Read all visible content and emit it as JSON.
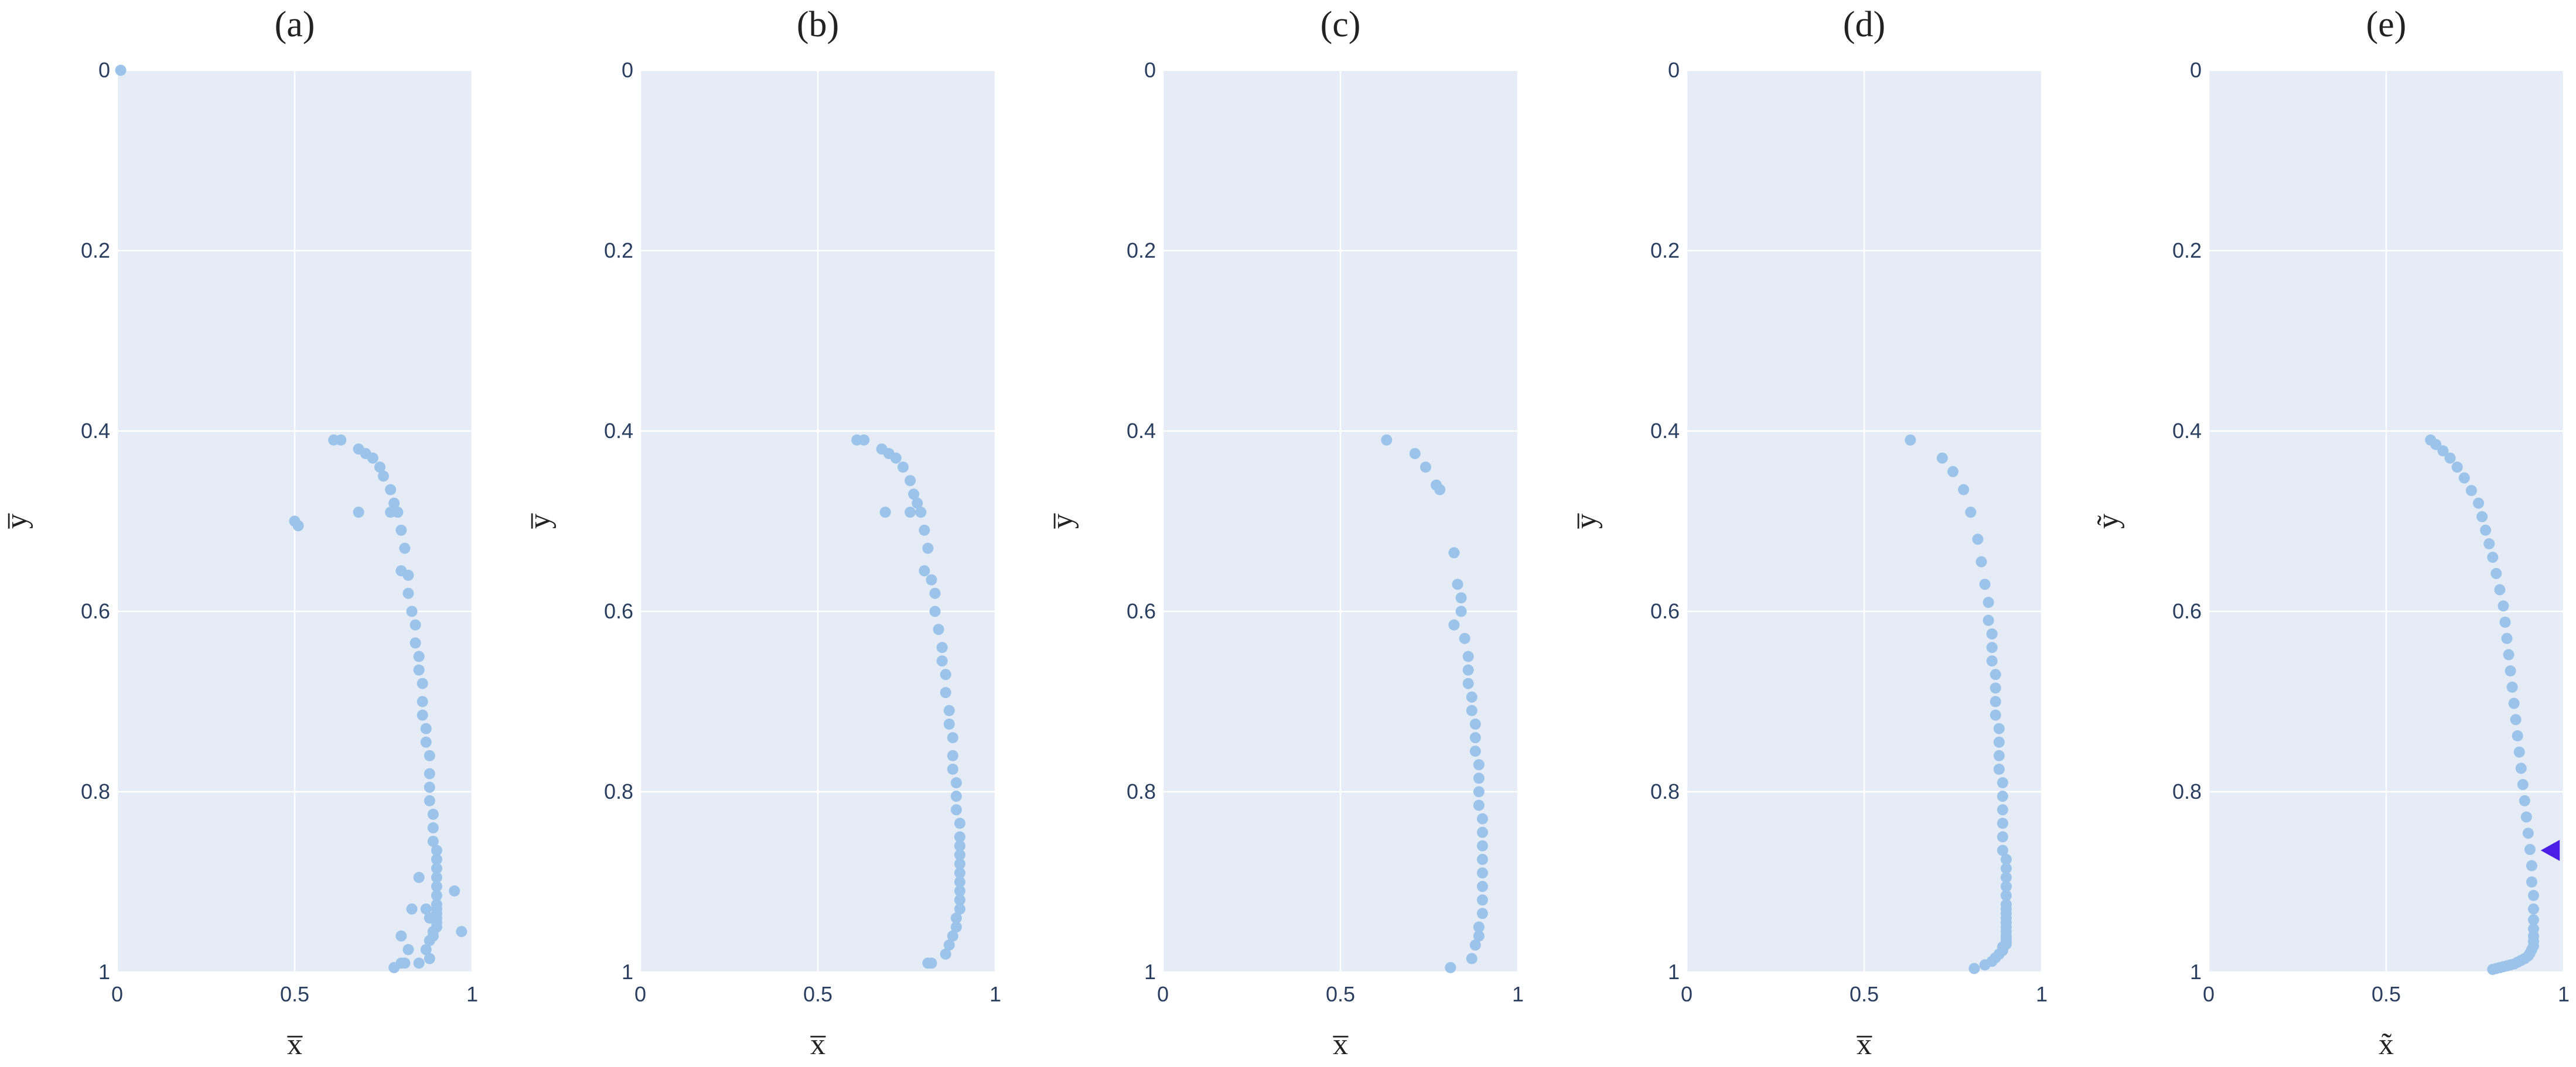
{
  "chart_data": [
    {
      "type": "scatter",
      "title": "(a)",
      "xlabel": "x̅",
      "ylabel": "y̅",
      "xlim": [
        0,
        1
      ],
      "ylim": [
        0,
        1
      ],
      "y_reversed": true,
      "x_ticks": [
        "0",
        "0.5",
        "1"
      ],
      "y_ticks": [
        "0",
        "0.2",
        "0.4",
        "0.6",
        "0.8",
        "1"
      ],
      "grid": true,
      "marker_color": "#9cc3ea",
      "plot_bg": "#e5ecf6",
      "series": [
        {
          "x": [
            0.01,
            0.61,
            0.63,
            0.68,
            0.7,
            0.72,
            0.74,
            0.75,
            0.77,
            0.78,
            0.79,
            0.79,
            0.68,
            0.77,
            0.5,
            0.51,
            0.8,
            0.81,
            0.8,
            0.82,
            0.82,
            0.83,
            0.84,
            0.84,
            0.85,
            0.85,
            0.86,
            0.86,
            0.86,
            0.87,
            0.87,
            0.88,
            0.88,
            0.88,
            0.88,
            0.89,
            0.89,
            0.89,
            0.9,
            0.9,
            0.9,
            0.9,
            0.9,
            0.9,
            0.9,
            0.9,
            0.9,
            0.9,
            0.9,
            0.9,
            0.89,
            0.89,
            0.88,
            0.87,
            0.85,
            0.83,
            0.88,
            0.95,
            0.97,
            0.8,
            0.82,
            0.87,
            0.88,
            0.85,
            0.8,
            0.78,
            0.81
          ],
          "y": [
            0.0,
            0.41,
            0.41,
            0.42,
            0.425,
            0.43,
            0.44,
            0.45,
            0.465,
            0.48,
            0.49,
            0.49,
            0.49,
            0.49,
            0.5,
            0.505,
            0.51,
            0.53,
            0.555,
            0.56,
            0.58,
            0.6,
            0.615,
            0.635,
            0.65,
            0.665,
            0.68,
            0.7,
            0.715,
            0.73,
            0.745,
            0.76,
            0.78,
            0.795,
            0.81,
            0.825,
            0.84,
            0.855,
            0.865,
            0.875,
            0.885,
            0.895,
            0.905,
            0.915,
            0.925,
            0.93,
            0.935,
            0.94,
            0.945,
            0.95,
            0.955,
            0.96,
            0.965,
            0.93,
            0.895,
            0.93,
            0.94,
            0.91,
            0.955,
            0.96,
            0.975,
            0.975,
            0.985,
            0.99,
            0.99,
            0.995,
            0.99
          ]
        }
      ]
    },
    {
      "type": "scatter",
      "title": "(b)",
      "xlabel": "x̅",
      "ylabel": "y̅",
      "xlim": [
        0,
        1
      ],
      "ylim": [
        0,
        1
      ],
      "y_reversed": true,
      "x_ticks": [
        "0",
        "0.5",
        "1"
      ],
      "y_ticks": [
        "0",
        "0.2",
        "0.4",
        "0.6",
        "0.8",
        "1"
      ],
      "grid": true,
      "marker_color": "#9cc3ea",
      "plot_bg": "#e5ecf6",
      "series": [
        {
          "x": [
            0.61,
            0.63,
            0.68,
            0.7,
            0.72,
            0.74,
            0.76,
            0.77,
            0.78,
            0.79,
            0.69,
            0.76,
            0.8,
            0.81,
            0.8,
            0.82,
            0.83,
            0.83,
            0.84,
            0.85,
            0.85,
            0.86,
            0.86,
            0.87,
            0.87,
            0.88,
            0.88,
            0.88,
            0.89,
            0.89,
            0.89,
            0.9,
            0.9,
            0.9,
            0.9,
            0.9,
            0.9,
            0.9,
            0.9,
            0.9,
            0.9,
            0.89,
            0.89,
            0.88,
            0.87,
            0.86,
            0.82,
            0.81
          ],
          "y": [
            0.41,
            0.41,
            0.42,
            0.425,
            0.43,
            0.44,
            0.455,
            0.47,
            0.48,
            0.49,
            0.49,
            0.49,
            0.51,
            0.53,
            0.555,
            0.565,
            0.58,
            0.6,
            0.62,
            0.64,
            0.655,
            0.67,
            0.69,
            0.71,
            0.725,
            0.74,
            0.76,
            0.775,
            0.79,
            0.805,
            0.82,
            0.835,
            0.85,
            0.86,
            0.87,
            0.88,
            0.89,
            0.9,
            0.91,
            0.92,
            0.93,
            0.94,
            0.95,
            0.96,
            0.97,
            0.98,
            0.99,
            0.99
          ]
        }
      ]
    },
    {
      "type": "scatter",
      "title": "(c)",
      "xlabel": "x̅",
      "ylabel": "y̅",
      "xlim": [
        0,
        1
      ],
      "ylim": [
        0,
        1
      ],
      "y_reversed": true,
      "x_ticks": [
        "0",
        "0.5",
        "1"
      ],
      "y_ticks": [
        "0",
        "0.2",
        "0.4",
        "0.6",
        "0.8",
        "1"
      ],
      "grid": true,
      "marker_color": "#9cc3ea",
      "plot_bg": "#e5ecf6",
      "series": [
        {
          "x": [
            0.63,
            0.71,
            0.74,
            0.77,
            0.78,
            0.82,
            0.83,
            0.84,
            0.84,
            0.82,
            0.85,
            0.86,
            0.86,
            0.86,
            0.87,
            0.87,
            0.88,
            0.88,
            0.88,
            0.89,
            0.89,
            0.89,
            0.89,
            0.9,
            0.9,
            0.9,
            0.9,
            0.9,
            0.9,
            0.9,
            0.9,
            0.89,
            0.89,
            0.88,
            0.87,
            0.81
          ],
          "y": [
            0.41,
            0.425,
            0.44,
            0.46,
            0.465,
            0.535,
            0.57,
            0.585,
            0.6,
            0.615,
            0.63,
            0.65,
            0.665,
            0.68,
            0.695,
            0.71,
            0.725,
            0.74,
            0.755,
            0.77,
            0.785,
            0.8,
            0.815,
            0.83,
            0.845,
            0.86,
            0.875,
            0.89,
            0.905,
            0.92,
            0.935,
            0.95,
            0.96,
            0.97,
            0.985,
            0.995
          ]
        }
      ]
    },
    {
      "type": "scatter",
      "title": "(d)",
      "xlabel": "x̅",
      "ylabel": "y̅",
      "xlim": [
        0,
        1
      ],
      "ylim": [
        0,
        1
      ],
      "y_reversed": true,
      "x_ticks": [
        "0",
        "0.5",
        "1"
      ],
      "y_ticks": [
        "0",
        "0.2",
        "0.4",
        "0.6",
        "0.8",
        "1"
      ],
      "grid": true,
      "marker_color": "#9cc3ea",
      "plot_bg": "#e5ecf6",
      "series": [
        {
          "x": [
            0.63,
            0.72,
            0.75,
            0.78,
            0.8,
            0.82,
            0.83,
            0.84,
            0.85,
            0.85,
            0.86,
            0.86,
            0.86,
            0.87,
            0.87,
            0.87,
            0.87,
            0.88,
            0.88,
            0.88,
            0.88,
            0.89,
            0.89,
            0.89,
            0.89,
            0.89,
            0.89,
            0.9,
            0.9,
            0.9,
            0.9,
            0.9,
            0.9,
            0.9,
            0.9,
            0.9,
            0.9,
            0.9,
            0.9,
            0.9,
            0.9,
            0.9,
            0.9,
            0.89,
            0.89,
            0.88,
            0.87,
            0.86,
            0.84,
            0.81
          ],
          "y": [
            0.41,
            0.43,
            0.445,
            0.465,
            0.49,
            0.52,
            0.545,
            0.57,
            0.59,
            0.61,
            0.625,
            0.64,
            0.655,
            0.67,
            0.685,
            0.7,
            0.715,
            0.73,
            0.745,
            0.76,
            0.775,
            0.79,
            0.805,
            0.82,
            0.835,
            0.85,
            0.865,
            0.875,
            0.885,
            0.895,
            0.905,
            0.915,
            0.925,
            0.93,
            0.935,
            0.94,
            0.945,
            0.95,
            0.955,
            0.96,
            0.963,
            0.966,
            0.969,
            0.972,
            0.976,
            0.98,
            0.984,
            0.988,
            0.992,
            0.996
          ]
        }
      ]
    },
    {
      "type": "scatter",
      "title": "(e)",
      "xlabel": "x̃",
      "ylabel": "ỹ",
      "xlim": [
        0,
        1
      ],
      "ylim": [
        0,
        1
      ],
      "y_reversed": true,
      "x_ticks": [
        "0",
        "0.5",
        "1"
      ],
      "y_ticks": [
        "0",
        "0.2",
        "0.4",
        "0.6",
        "0.8",
        "1"
      ],
      "grid": true,
      "marker_color": "#9cc3ea",
      "plot_bg": "#e5ecf6",
      "series": [
        {
          "x": [
            0.625,
            0.64,
            0.66,
            0.68,
            0.7,
            0.72,
            0.74,
            0.76,
            0.77,
            0.78,
            0.79,
            0.8,
            0.81,
            0.82,
            0.83,
            0.835,
            0.84,
            0.845,
            0.85,
            0.855,
            0.86,
            0.865,
            0.87,
            0.875,
            0.88,
            0.885,
            0.89,
            0.895,
            0.9,
            0.905,
            0.91,
            0.91,
            0.915,
            0.915,
            0.915,
            0.915,
            0.915,
            0.915,
            0.915,
            0.91,
            0.905,
            0.9,
            0.89,
            0.88,
            0.87,
            0.86,
            0.85,
            0.84,
            0.83,
            0.82,
            0.81,
            0.8
          ],
          "y": [
            0.41,
            0.415,
            0.422,
            0.43,
            0.44,
            0.452,
            0.466,
            0.48,
            0.495,
            0.51,
            0.525,
            0.54,
            0.558,
            0.576,
            0.594,
            0.612,
            0.63,
            0.648,
            0.666,
            0.684,
            0.702,
            0.72,
            0.738,
            0.756,
            0.774,
            0.792,
            0.81,
            0.828,
            0.846,
            0.864,
            0.882,
            0.9,
            0.915,
            0.93,
            0.942,
            0.952,
            0.96,
            0.966,
            0.971,
            0.975,
            0.979,
            0.982,
            0.985,
            0.987,
            0.989,
            0.991,
            0.992,
            0.993,
            0.994,
            0.995,
            0.996,
            0.997
          ]
        },
        {
          "marker": "triangle-left",
          "marker_color": "#4b1ee6",
          "x": [
            0.965
          ],
          "y": [
            0.865
          ]
        }
      ]
    }
  ]
}
